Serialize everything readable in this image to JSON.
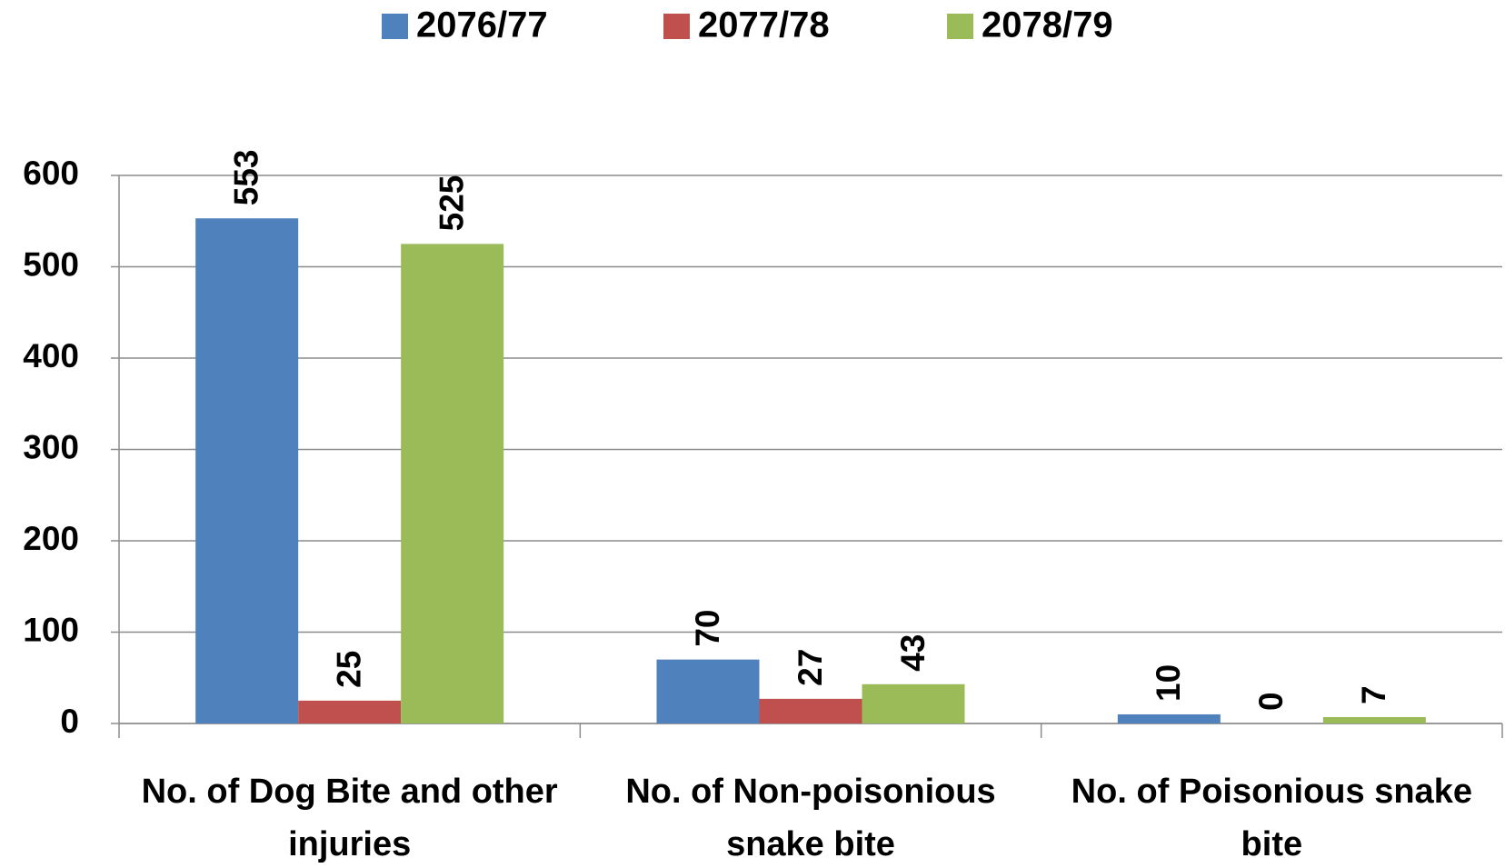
{
  "chart_data": {
    "type": "bar",
    "categories": [
      "No. of Dog Bite and other injuries",
      "No. of Non-poisonious snake bite",
      "No. of Poisonious snake bite"
    ],
    "series": [
      {
        "name": "2076/77",
        "color": "#4f81bd",
        "values": [
          553,
          70,
          10
        ]
      },
      {
        "name": "2077/78",
        "color": "#c0504d",
        "values": [
          25,
          27,
          0
        ]
      },
      {
        "name": "2078/79",
        "color": "#9bbb59",
        "values": [
          525,
          43,
          7
        ]
      }
    ],
    "ylim": [
      0,
      600
    ],
    "yticks": [
      0,
      100,
      200,
      300,
      400,
      500,
      600
    ],
    "grid": true,
    "legend": "top"
  }
}
